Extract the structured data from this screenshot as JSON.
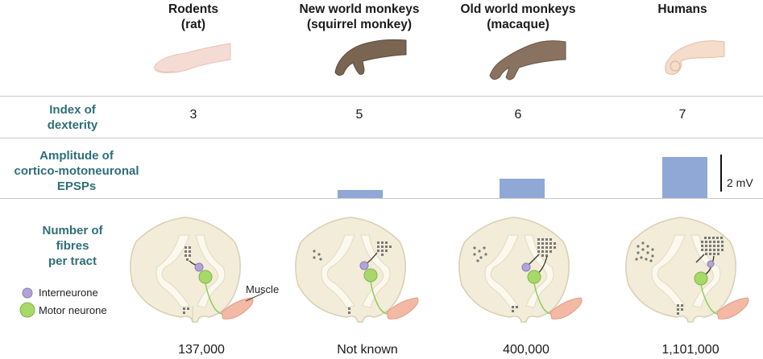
{
  "species": [
    {
      "line1": "Rodents",
      "line2": "(rat)",
      "dexterity": "3",
      "epsp_mv": 0,
      "fibres": "137,000"
    },
    {
      "line1": "New world monkeys",
      "line2": "(squirrel monkey)",
      "dexterity": "5",
      "epsp_mv": 0.45,
      "fibres": "Not known"
    },
    {
      "line1": "Old world monkeys",
      "line2": "(macaque)",
      "dexterity": "6",
      "epsp_mv": 1.05,
      "fibres": "400,000"
    },
    {
      "line1": "Humans",
      "line2": "",
      "dexterity": "7",
      "epsp_mv": 2.2,
      "fibres": "1,101,000"
    }
  ],
  "rows": {
    "dexterity": {
      "line1": "Index of",
      "line2": "dexterity"
    },
    "epsp": {
      "line1": "Amplitude of",
      "line2": "cortico-motoneuronal",
      "line3": "EPSPs"
    },
    "fibres": {
      "line1": "Number of",
      "line2": "fibres",
      "line3": "per tract"
    }
  },
  "scale_bar": {
    "label": "2 mV",
    "value_mv": 2
  },
  "legend": {
    "interneurone": "Interneurone",
    "motor_neurone": "Motor neurone",
    "muscle": "Muscle"
  },
  "colors": {
    "row_label": "#2e6f78",
    "bar": "#8fa8d6",
    "interneurone": "#b3a4d6",
    "motor_neurone": "#a9d86a",
    "cord": "#f2ecd8",
    "muscle": "#f3b9a4"
  }
}
